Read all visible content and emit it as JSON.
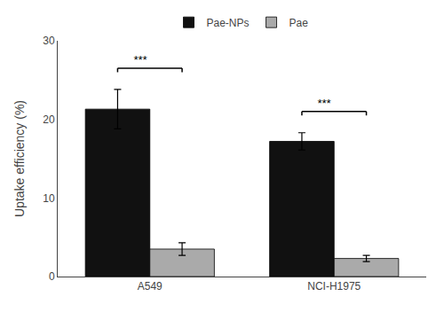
{
  "chart_data": {
    "type": "bar",
    "categories": [
      "A549",
      "NCI-H1975"
    ],
    "series": [
      {
        "name": "Pae-NPs",
        "color": "#111111",
        "values": [
          21.3,
          17.2
        ],
        "errors": [
          2.5,
          1.1
        ]
      },
      {
        "name": "Pae",
        "color": "#aaaaaa",
        "values": [
          3.5,
          2.3
        ],
        "errors": [
          0.8,
          0.4
        ]
      }
    ],
    "ylabel": "Uptake efficiency (%)",
    "ylim": [
      0,
      30
    ],
    "yticks": [
      0,
      10,
      20,
      30
    ],
    "annotations": [
      {
        "category": "A549",
        "y": 26.5,
        "text": "***"
      },
      {
        "category": "NCI-H1975",
        "y": 21.0,
        "text": "***"
      }
    ],
    "legend": "top",
    "grid": false
  }
}
